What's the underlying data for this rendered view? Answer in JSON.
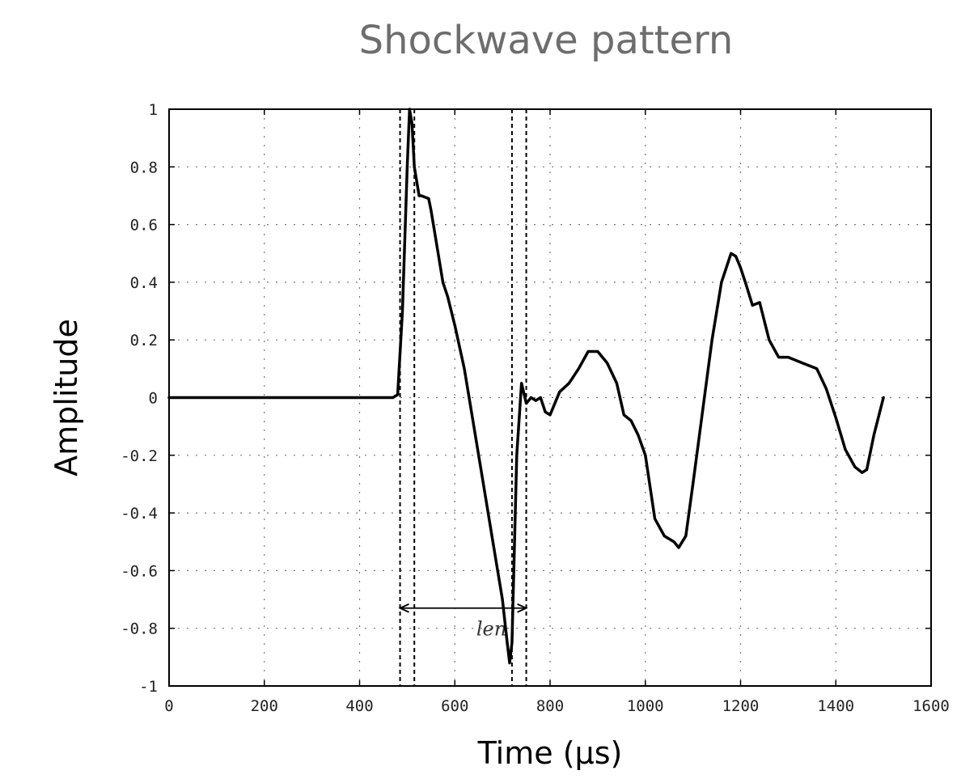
{
  "chart_data": {
    "type": "line",
    "title": "Shockwave pattern",
    "xlabel": "Time (µs)",
    "ylabel": "Amplitude",
    "xlim": [
      0,
      1600
    ],
    "ylim": [
      -1,
      1
    ],
    "xticks": [
      0,
      200,
      400,
      600,
      800,
      1000,
      1200,
      1400,
      1600
    ],
    "yticks": [
      1,
      0.8,
      0.6,
      0.4,
      0.2,
      0,
      -0.2,
      -0.4,
      -0.6,
      -0.8,
      -1
    ],
    "ytick_labels": [
      "1",
      "0.8",
      "0.6",
      "0.4",
      "0.2",
      "0",
      "-0.2",
      "-0.4",
      "-0.6",
      "-0.8",
      "-1"
    ],
    "grid": true,
    "series": [
      {
        "x": [
          0,
          100,
          200,
          300,
          400,
          470,
          480,
          490,
          500,
          505,
          510,
          515,
          525,
          530,
          545,
          550,
          560,
          575,
          585,
          600,
          620,
          640,
          660,
          680,
          700,
          710,
          715,
          720,
          730,
          740,
          750,
          760,
          770,
          780,
          790,
          800,
          820,
          840,
          860,
          880,
          900,
          920,
          940,
          955,
          970,
          985,
          1000,
          1020,
          1040,
          1060,
          1070,
          1085,
          1100,
          1120,
          1140,
          1160,
          1180,
          1190,
          1200,
          1210,
          1225,
          1240,
          1260,
          1280,
          1300,
          1330,
          1360,
          1380,
          1400,
          1420,
          1440,
          1455,
          1465,
          1480,
          1500
        ],
        "y": [
          0,
          0,
          0,
          0,
          0,
          0,
          0.01,
          0.3,
          0.8,
          1.0,
          0.95,
          0.8,
          0.7,
          0.7,
          0.69,
          0.65,
          0.55,
          0.4,
          0.35,
          0.25,
          0.1,
          -0.1,
          -0.3,
          -0.5,
          -0.7,
          -0.85,
          -0.92,
          -0.85,
          -0.2,
          0.05,
          -0.02,
          0.0,
          -0.01,
          0.0,
          -0.05,
          -0.06,
          0.02,
          0.05,
          0.1,
          0.16,
          0.16,
          0.12,
          0.05,
          -0.06,
          -0.08,
          -0.13,
          -0.2,
          -0.42,
          -0.48,
          -0.5,
          -0.52,
          -0.48,
          -0.3,
          -0.05,
          0.2,
          0.4,
          0.5,
          0.49,
          0.45,
          0.4,
          0.32,
          0.33,
          0.2,
          0.14,
          0.14,
          0.12,
          0.1,
          0.03,
          -0.07,
          -0.18,
          -0.24,
          -0.26,
          -0.25,
          -0.13,
          0.0
        ]
      }
    ],
    "markers": [
      485,
      515,
      720,
      750
    ],
    "annotation": {
      "label": "len",
      "from": 485,
      "to": 750,
      "y": -0.73
    }
  }
}
